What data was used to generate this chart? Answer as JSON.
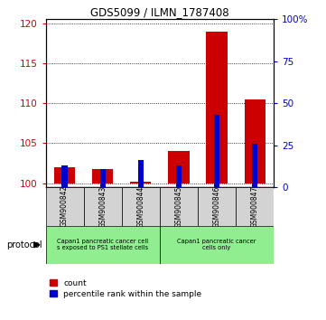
{
  "title": "GDS5099 / ILMN_1787408",
  "samples": [
    "GSM900842",
    "GSM900843",
    "GSM900844",
    "GSM900845",
    "GSM900846",
    "GSM900847"
  ],
  "count_values": [
    102.0,
    101.8,
    100.2,
    104.0,
    119.0,
    110.5
  ],
  "percentile_values": [
    13.0,
    11.0,
    16.0,
    13.0,
    43.0,
    26.0
  ],
  "ylim_left": [
    99.5,
    120.5
  ],
  "ylim_right": [
    0,
    100
  ],
  "yticks_left": [
    100,
    105,
    110,
    115,
    120
  ],
  "yticks_right": [
    0,
    25,
    50,
    75,
    100
  ],
  "red_color": "#cc0000",
  "blue_color": "#0000cc",
  "group1_label": "Capan1 pancreatic cancer cell\ns exposed to PS1 stellate cells",
  "group2_label": "Capan1 pancreatic cancer\ncells only",
  "group1_color": "#90ee90",
  "group2_color": "#90ee90",
  "protocol_label": "protocol",
  "legend_count": "count",
  "legend_percentile": "percentile rank within the sample",
  "tick_label_color_left": "#cc0000",
  "tick_label_color_right": "#0000cc",
  "sample_box_color": "#d3d3d3"
}
